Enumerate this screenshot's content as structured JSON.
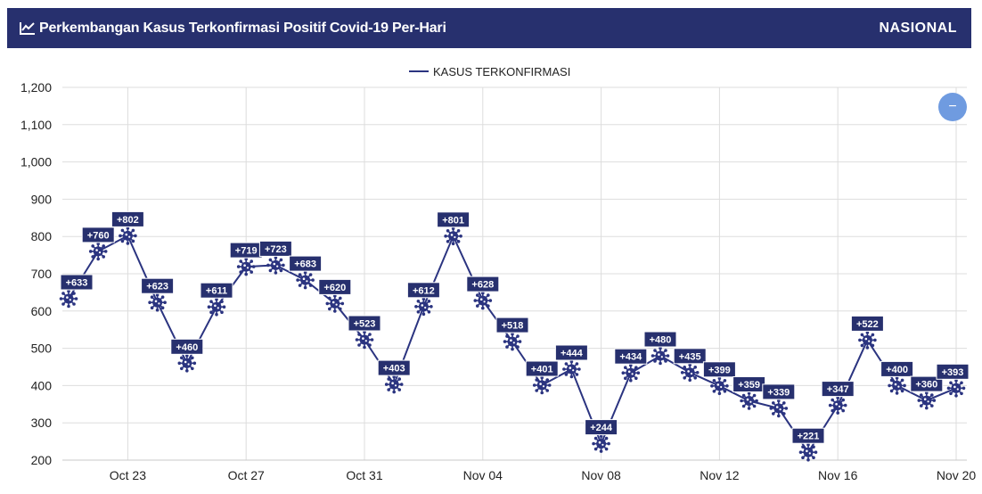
{
  "header": {
    "title": "Perkembangan Kasus Terkonfirmasi Positif Covid-19 Per-Hari",
    "region": "NASIONAL"
  },
  "zoom_button": {
    "label": "−"
  },
  "colors": {
    "header_bg": "#27306e",
    "series": "#2b3480",
    "label_bg": "#27306e",
    "zoom_button": "#6f9be0",
    "grid": "#dddddd"
  },
  "icons": {
    "title": "line-chart-icon",
    "marker": "virus-icon"
  },
  "chart_data": {
    "type": "line",
    "legend": {
      "position": "top-center",
      "entries": [
        "KASUS TERKONFIRMASI"
      ]
    },
    "series": [
      {
        "name": "KASUS TERKONFIRMASI",
        "x": [
          "2020-10-21",
          "2020-10-22",
          "2020-10-23",
          "2020-10-24",
          "2020-10-25",
          "2020-10-26",
          "2020-10-27",
          "2020-10-28",
          "2020-10-29",
          "2020-10-30",
          "2020-10-31",
          "2020-11-01",
          "2020-11-02",
          "2020-11-03",
          "2020-11-04",
          "2020-11-05",
          "2020-11-06",
          "2020-11-07",
          "2020-11-08",
          "2020-11-09",
          "2020-11-10",
          "2020-11-11",
          "2020-11-12",
          "2020-11-13",
          "2020-11-14",
          "2020-11-15",
          "2020-11-16",
          "2020-11-17",
          "2020-11-18",
          "2020-11-19",
          "2020-11-20"
        ],
        "values": [
          633,
          760,
          802,
          623,
          460,
          611,
          719,
          723,
          683,
          620,
          523,
          403,
          612,
          801,
          628,
          518,
          401,
          444,
          244,
          434,
          480,
          435,
          399,
          359,
          339,
          221,
          347,
          522,
          400,
          360,
          393
        ]
      }
    ],
    "data_labels": [
      "+633",
      "+760",
      "+802",
      "+623",
      "+460",
      "+611",
      "+719",
      "+723",
      "+683",
      "+620",
      "+523",
      "+403",
      "+612",
      "+801",
      "+628",
      "+518",
      "+401",
      "+444",
      "+244",
      "+434",
      "+480",
      "+435",
      "+399",
      "+359",
      "+339",
      "+221",
      "+347",
      "+522",
      "+400",
      "+360",
      "+393"
    ],
    "x_ticks": [
      "Oct 23",
      "Oct 27",
      "Oct 31",
      "Nov 04",
      "Nov 08",
      "Nov 12",
      "Nov 16",
      "Nov 20"
    ],
    "x_tick_index": [
      2,
      6,
      10,
      14,
      18,
      22,
      26,
      30
    ],
    "y_ticks": [
      "200",
      "300",
      "400",
      "500",
      "600",
      "700",
      "800",
      "900",
      "1,000",
      "1,100",
      "1,200"
    ],
    "ylim": [
      200,
      1200
    ],
    "grid": true
  }
}
